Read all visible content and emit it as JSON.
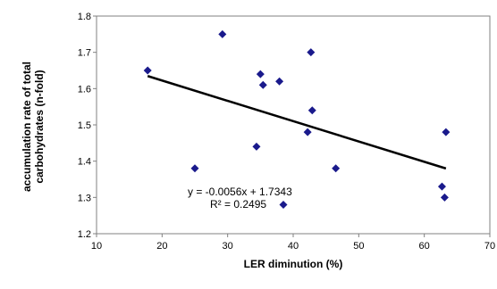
{
  "chart_data": {
    "type": "scatter",
    "xlabel": "LER diminution (%)",
    "ylabel_line1": "accumulation rate of total",
    "ylabel_line2": "carbohydrates (n-fold)",
    "xlim": [
      10,
      70
    ],
    "ylim": [
      1.2,
      1.8
    ],
    "xticks": [
      "10",
      "20",
      "30",
      "40",
      "50",
      "60",
      "70"
    ],
    "yticks": [
      "1.2",
      "1.3",
      "1.4",
      "1.5",
      "1.6",
      "1.7",
      "1.8"
    ],
    "grid": false,
    "marker_color": "#1a1a8c",
    "trendline_color": "#000000",
    "points": [
      {
        "x": 17.8,
        "y": 1.65
      },
      {
        "x": 25.0,
        "y": 1.38
      },
      {
        "x": 29.2,
        "y": 1.75
      },
      {
        "x": 34.4,
        "y": 1.44
      },
      {
        "x": 35.0,
        "y": 1.64
      },
      {
        "x": 35.4,
        "y": 1.61
      },
      {
        "x": 37.9,
        "y": 1.62
      },
      {
        "x": 38.5,
        "y": 1.28
      },
      {
        "x": 42.2,
        "y": 1.48
      },
      {
        "x": 42.7,
        "y": 1.7
      },
      {
        "x": 42.9,
        "y": 1.54
      },
      {
        "x": 46.5,
        "y": 1.38
      },
      {
        "x": 62.7,
        "y": 1.33
      },
      {
        "x": 63.1,
        "y": 1.3
      },
      {
        "x": 63.3,
        "y": 1.48
      }
    ],
    "trendline": {
      "slope": -0.0056,
      "intercept": 1.7343,
      "x_range": [
        17.8,
        63.3
      ],
      "equation_label": "y = -0.0056x + 1.7343",
      "r2_label": "R² = 0.2495"
    }
  }
}
